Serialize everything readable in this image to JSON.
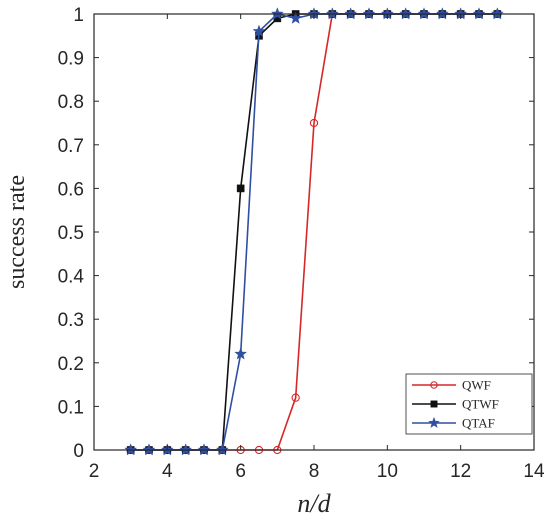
{
  "chart_data": {
    "type": "line",
    "xlabel": "n/d",
    "ylabel": "success rate",
    "xlim": [
      2,
      14
    ],
    "ylim": [
      0,
      1
    ],
    "xticks": [
      2,
      4,
      6,
      8,
      10,
      12,
      14
    ],
    "yticks": [
      0,
      0.1,
      0.2,
      0.3,
      0.4,
      0.5,
      0.6,
      0.7,
      0.8,
      0.9,
      1
    ],
    "grid": false,
    "legend_position": "bottom-right",
    "series": [
      {
        "name": "QWF",
        "color": "#d62728",
        "marker": "circle-open",
        "x": [
          3,
          3.5,
          4,
          4.5,
          5,
          5.5,
          6,
          6.5,
          7,
          7.5,
          8,
          8.5,
          9,
          9.5,
          10,
          10.5,
          11,
          11.5,
          12,
          12.5,
          13
        ],
        "y": [
          0,
          0,
          0,
          0,
          0,
          0,
          0,
          0,
          0,
          0.12,
          0.75,
          1,
          1,
          1,
          1,
          1,
          1,
          1,
          1,
          1,
          1
        ]
      },
      {
        "name": "QTWF",
        "color": "#111111",
        "marker": "square",
        "x": [
          3,
          3.5,
          4,
          4.5,
          5,
          5.5,
          6,
          6.5,
          7,
          7.5,
          8,
          8.5,
          9,
          9.5,
          10,
          10.5,
          11,
          11.5,
          12,
          12.5,
          13
        ],
        "y": [
          0,
          0,
          0,
          0,
          0,
          0,
          0.6,
          0.95,
          0.99,
          1,
          1,
          1,
          1,
          1,
          1,
          1,
          1,
          1,
          1,
          1,
          1
        ]
      },
      {
        "name": "QTAF",
        "color": "#2f4fa0",
        "marker": "star",
        "x": [
          3,
          3.5,
          4,
          4.5,
          5,
          5.5,
          6,
          6.5,
          7,
          7.5,
          8,
          8.5,
          9,
          9.5,
          10,
          10.5,
          11,
          11.5,
          12,
          12.5,
          13
        ],
        "y": [
          0,
          0,
          0,
          0,
          0,
          0,
          0.22,
          0.96,
          1,
          0.99,
          1,
          1,
          1,
          1,
          1,
          1,
          1,
          1,
          1,
          1,
          1
        ]
      }
    ]
  }
}
